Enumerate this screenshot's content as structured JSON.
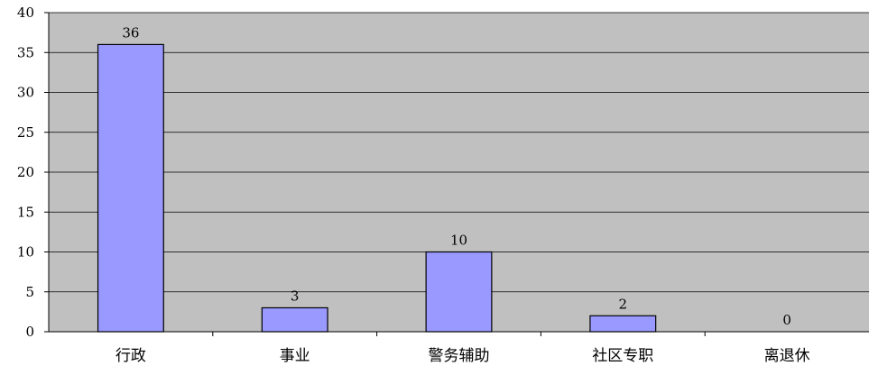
{
  "chart_data": {
    "type": "bar",
    "categories": [
      "行政",
      "事业",
      "警务辅助",
      "社区专职",
      "离退休"
    ],
    "values": [
      36,
      3,
      10,
      2,
      0
    ],
    "data_labels": [
      "36",
      "3",
      "10",
      "2",
      "0"
    ],
    "ylim": [
      0,
      40
    ],
    "yticks": [
      0,
      5,
      10,
      15,
      20,
      25,
      30,
      35,
      40
    ],
    "ytick_labels": [
      "0",
      "5",
      "10",
      "15",
      "20",
      "25",
      "30",
      "35",
      "40"
    ],
    "grid": true,
    "legend": "none",
    "colors": {
      "plot_background": "#c0c0c0",
      "bar_fill": "#9999ff",
      "bar_stroke": "#000000",
      "grid": "#000000"
    }
  }
}
